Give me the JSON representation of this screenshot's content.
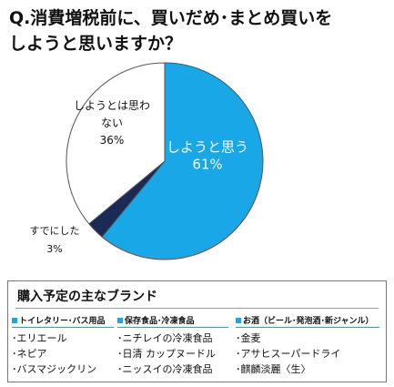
{
  "title": {
    "line1": "Q.消費増税前に、買いだめ･まとめ買いを",
    "line2": "しようと思いますか？"
  },
  "chart_data": {
    "type": "pie",
    "slices": [
      {
        "label_lines": [
          "しようと思う"
        ],
        "value_label": "61%",
        "value": 61,
        "color": "#1aa7e8",
        "label_color": "#ffffff"
      },
      {
        "label_lines": [
          "すでにした"
        ],
        "value_label": "3%",
        "value": 3,
        "color": "#1b2a55",
        "label_color": "#111111"
      },
      {
        "label_lines": [
          "しようとは思わ",
          "ない"
        ],
        "value_label": "36%",
        "value": 36,
        "color": "#ffffff",
        "label_color": "#111111"
      }
    ]
  },
  "brands": {
    "title": "購入予定の主なブランド",
    "columns": [
      {
        "header": "トイレタリー･バス用品",
        "items": [
          "･エリエール",
          "･ネピア",
          "･バスマジックリン"
        ]
      },
      {
        "header": "保存食品･冷凍食品",
        "items": [
          "･ニチレイの冷凍食品",
          "･日清 カップヌードル",
          "･ニッスイの冷凍食品"
        ]
      },
      {
        "header": "お酒（ビール･発泡酒･新ジャンル）",
        "items": [
          "･金麦",
          "･アサヒスーパードライ",
          "･麒麟淡麗〈生〉"
        ]
      }
    ]
  }
}
